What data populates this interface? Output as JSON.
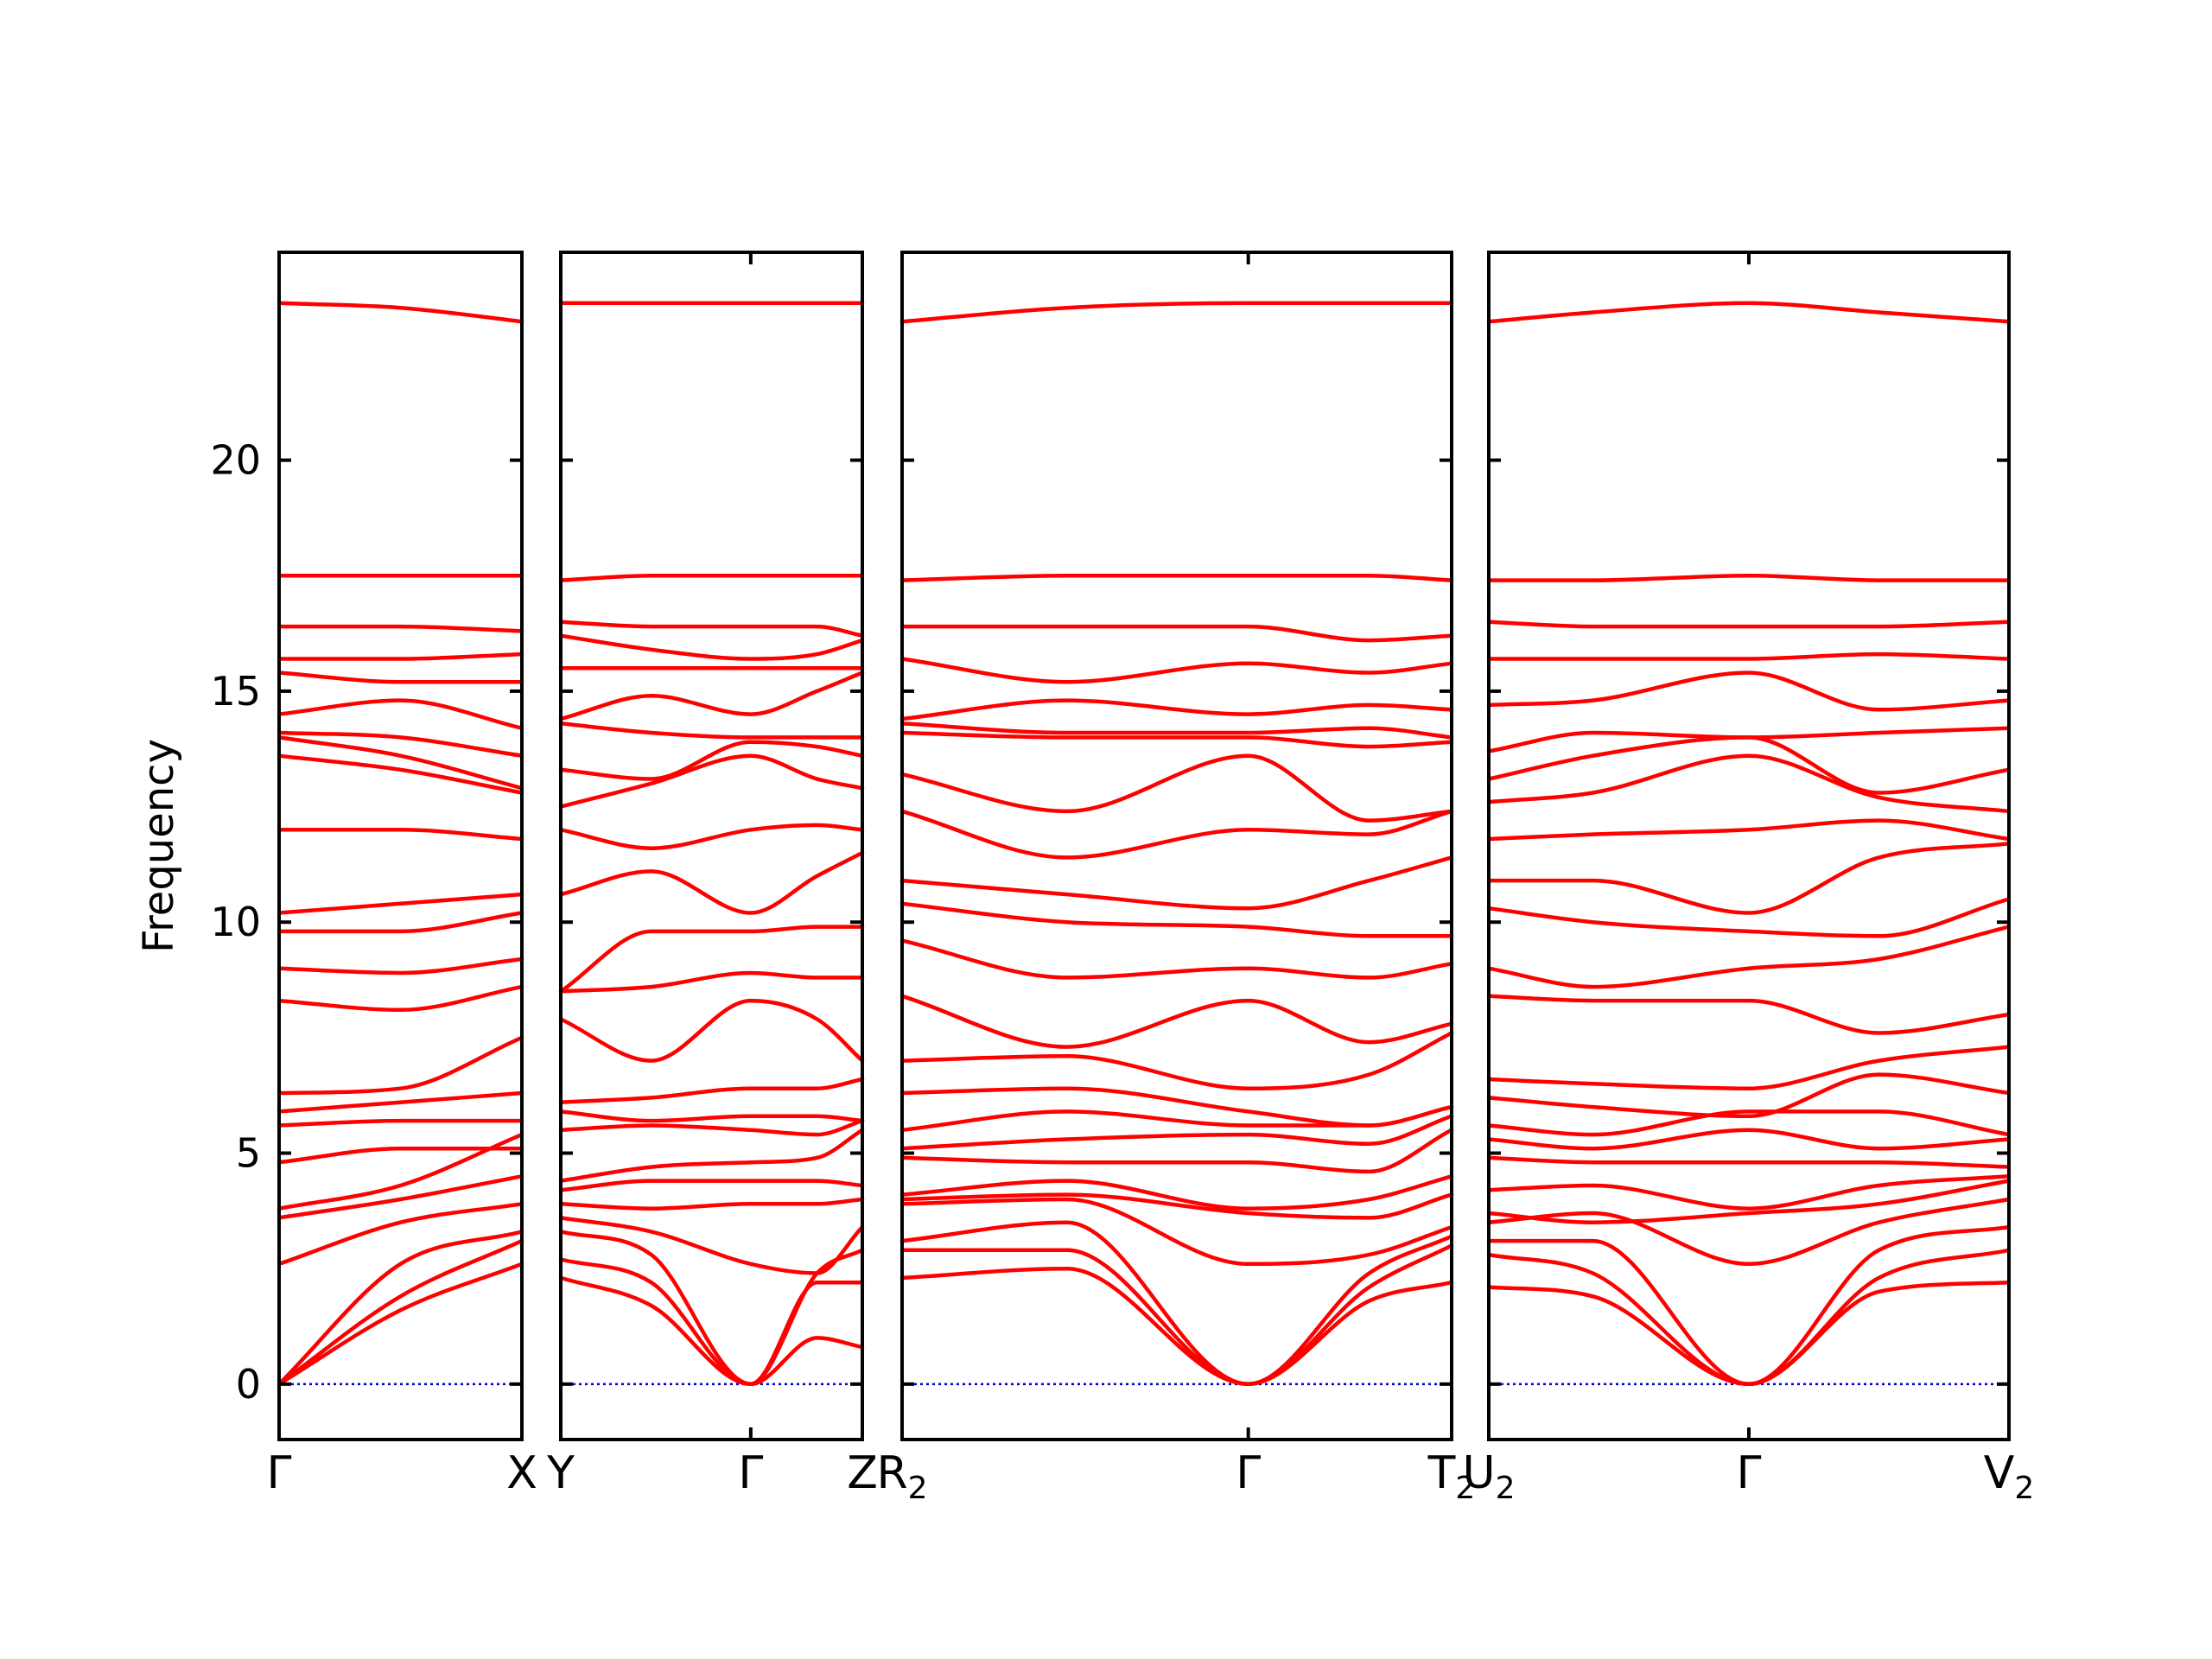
{
  "chart_data": {
    "type": "line",
    "ylabel": "Frequency",
    "ylim": [
      -1.2,
      24.5
    ],
    "yticks": [
      0,
      5,
      10,
      15,
      20
    ],
    "colors": {
      "band": "#ff0000",
      "zero_line": "#0000cc",
      "frame": "#000000"
    },
    "panels": [
      {
        "x_labels": [
          {
            "base": "Γ",
            "sub": ""
          },
          {
            "base": "X",
            "sub": ""
          }
        ],
        "x": [
          0,
          0.5,
          1
        ],
        "bands": [
          [
            0,
            1.6,
            2.6
          ],
          [
            0,
            1.9,
            3.1
          ],
          [
            0,
            2.6,
            3.3
          ],
          [
            2.6,
            3.5,
            3.9
          ],
          [
            3.6,
            4.0,
            4.5
          ],
          [
            3.8,
            4.3,
            5.4
          ],
          [
            4.8,
            5.1,
            5.1
          ],
          [
            5.6,
            5.7,
            5.7
          ],
          [
            5.9,
            6.1,
            6.3
          ],
          [
            6.3,
            6.4,
            7.5
          ],
          [
            8.3,
            8.1,
            8.6
          ],
          [
            9.0,
            8.9,
            9.2
          ],
          [
            9.8,
            9.8,
            10.2
          ],
          [
            10.2,
            10.4,
            10.6
          ],
          [
            12.0,
            12.0,
            11.8
          ],
          [
            13.6,
            13.3,
            12.8
          ],
          [
            14.0,
            13.6,
            12.9
          ],
          [
            14.1,
            14.0,
            13.6
          ],
          [
            14.5,
            14.8,
            14.2
          ],
          [
            15.4,
            15.2,
            15.2
          ],
          [
            15.7,
            15.7,
            15.8
          ],
          [
            16.4,
            16.4,
            16.3
          ],
          [
            17.5,
            17.5,
            17.5
          ],
          [
            23.4,
            23.3,
            23.0
          ]
        ]
      },
      {
        "x_labels": [
          {
            "base": "Y",
            "sub": ""
          },
          {
            "base": "Γ",
            "sub": ""
          },
          {
            "base": "Z",
            "sub": ""
          }
        ],
        "x": [
          0,
          0.3,
          0.63,
          0.85,
          1
        ],
        "bands": [
          [
            2.3,
            1.7,
            0,
            1.0,
            0.8
          ],
          [
            2.7,
            2.2,
            0,
            2.2,
            2.2
          ],
          [
            3.3,
            2.8,
            0,
            2.4,
            2.9
          ],
          [
            3.6,
            3.3,
            2.6,
            2.4,
            3.4
          ],
          [
            3.9,
            3.8,
            3.9,
            3.9,
            4.0
          ],
          [
            4.2,
            4.4,
            4.4,
            4.4,
            4.3
          ],
          [
            4.4,
            4.7,
            4.8,
            4.9,
            5.5
          ],
          [
            5.5,
            5.6,
            5.5,
            5.4,
            5.7
          ],
          [
            5.9,
            5.7,
            5.8,
            5.8,
            5.7
          ],
          [
            6.1,
            6.2,
            6.4,
            6.4,
            6.6
          ],
          [
            7.9,
            7.0,
            8.3,
            7.9,
            7.0
          ],
          [
            8.5,
            8.6,
            8.9,
            8.8,
            8.8
          ],
          [
            8.5,
            9.8,
            9.8,
            9.9,
            9.9
          ],
          [
            10.6,
            11.1,
            10.2,
            11.0,
            11.5
          ],
          [
            12.0,
            11.6,
            12.0,
            12.1,
            12.0
          ],
          [
            12.5,
            13.0,
            13.6,
            13.1,
            12.9
          ],
          [
            13.3,
            13.1,
            13.9,
            13.8,
            13.6
          ],
          [
            14.3,
            14.1,
            14.0,
            14.0,
            14.0
          ],
          [
            14.4,
            14.9,
            14.5,
            15.0,
            15.4
          ],
          [
            15.5,
            15.5,
            15.5,
            15.5,
            15.5
          ],
          [
            16.2,
            15.9,
            15.7,
            15.8,
            16.1
          ],
          [
            16.5,
            16.4,
            16.4,
            16.4,
            16.2
          ],
          [
            17.4,
            17.5,
            17.5,
            17.5,
            17.5
          ],
          [
            23.4,
            23.4,
            23.4,
            23.4,
            23.4
          ]
        ]
      },
      {
        "x_labels": [
          {
            "base": "R",
            "sub": "2"
          },
          {
            "base": "Γ",
            "sub": ""
          },
          {
            "base": "T",
            "sub": "2"
          }
        ],
        "x": [
          0,
          0.3,
          0.63,
          0.85,
          1
        ],
        "bands": [
          [
            2.3,
            2.5,
            0,
            1.8,
            2.2
          ],
          [
            2.9,
            2.9,
            0,
            2.1,
            3.0
          ],
          [
            3.1,
            3.5,
            0,
            2.4,
            3.2
          ],
          [
            3.9,
            4.0,
            2.6,
            2.8,
            3.4
          ],
          [
            4.0,
            4.1,
            3.7,
            3.6,
            4.1
          ],
          [
            4.1,
            4.4,
            3.8,
            4.0,
            4.5
          ],
          [
            4.9,
            4.8,
            4.8,
            4.6,
            5.5
          ],
          [
            5.1,
            5.3,
            5.4,
            5.2,
            5.8
          ],
          [
            5.5,
            5.9,
            5.6,
            5.6,
            6.0
          ],
          [
            6.3,
            6.4,
            5.9,
            5.6,
            6.0
          ],
          [
            7.0,
            7.1,
            6.4,
            6.7,
            7.6
          ],
          [
            8.4,
            7.3,
            8.3,
            7.4,
            7.8
          ],
          [
            9.6,
            8.8,
            9.0,
            8.8,
            9.1
          ],
          [
            10.4,
            10.0,
            9.9,
            9.7,
            9.7
          ],
          [
            10.9,
            10.6,
            10.3,
            10.9,
            11.4
          ],
          [
            12.4,
            11.4,
            12.0,
            11.9,
            12.4
          ],
          [
            13.2,
            12.4,
            13.6,
            12.2,
            12.4
          ],
          [
            14.1,
            14.0,
            14.0,
            13.8,
            13.9
          ],
          [
            14.3,
            14.1,
            14.1,
            14.2,
            14.0
          ],
          [
            14.4,
            14.8,
            14.5,
            14.7,
            14.6
          ],
          [
            15.7,
            15.2,
            15.6,
            15.4,
            15.6
          ],
          [
            16.4,
            16.4,
            16.4,
            16.1,
            16.2
          ],
          [
            17.4,
            17.5,
            17.5,
            17.5,
            17.4
          ],
          [
            23.0,
            23.3,
            23.4,
            23.4,
            23.4
          ]
        ]
      },
      {
        "x_labels": [
          {
            "base": "U",
            "sub": "2"
          },
          {
            "base": "Γ",
            "sub": ""
          },
          {
            "base": "V",
            "sub": "2"
          }
        ],
        "x": [
          0,
          0.2,
          0.5,
          0.75,
          1
        ],
        "bands": [
          [
            2.1,
            1.9,
            0,
            2.0,
            2.2
          ],
          [
            2.8,
            2.4,
            0,
            2.3,
            2.9
          ],
          [
            3.1,
            3.1,
            0,
            2.9,
            3.4
          ],
          [
            3.5,
            3.7,
            2.6,
            3.5,
            4.0
          ],
          [
            3.7,
            3.5,
            3.7,
            3.9,
            4.4
          ],
          [
            4.2,
            4.3,
            3.8,
            4.3,
            4.5
          ],
          [
            4.9,
            4.8,
            4.8,
            4.8,
            4.7
          ],
          [
            5.3,
            5.1,
            5.5,
            5.1,
            5.3
          ],
          [
            5.6,
            5.4,
            5.9,
            5.9,
            5.4
          ],
          [
            6.2,
            6.0,
            5.8,
            6.7,
            6.3
          ],
          [
            6.6,
            6.5,
            6.4,
            7.0,
            7.3
          ],
          [
            8.4,
            8.3,
            8.3,
            7.6,
            8.0
          ],
          [
            9.0,
            8.6,
            9.0,
            9.2,
            9.9
          ],
          [
            10.3,
            10.0,
            9.8,
            9.7,
            10.5
          ],
          [
            10.9,
            10.9,
            10.2,
            11.4,
            11.7
          ],
          [
            11.8,
            11.9,
            12.0,
            12.2,
            11.8
          ],
          [
            12.6,
            12.8,
            13.6,
            12.7,
            12.4
          ],
          [
            13.1,
            13.6,
            14.0,
            12.8,
            13.3
          ],
          [
            13.7,
            14.1,
            14.0,
            14.1,
            14.2
          ],
          [
            14.7,
            14.8,
            15.4,
            14.6,
            14.8
          ],
          [
            15.7,
            15.7,
            15.7,
            15.8,
            15.7
          ],
          [
            16.5,
            16.4,
            16.4,
            16.4,
            16.5
          ],
          [
            17.4,
            17.4,
            17.5,
            17.4,
            17.4
          ],
          [
            23.0,
            23.2,
            23.4,
            23.2,
            23.0
          ]
        ]
      }
    ]
  }
}
